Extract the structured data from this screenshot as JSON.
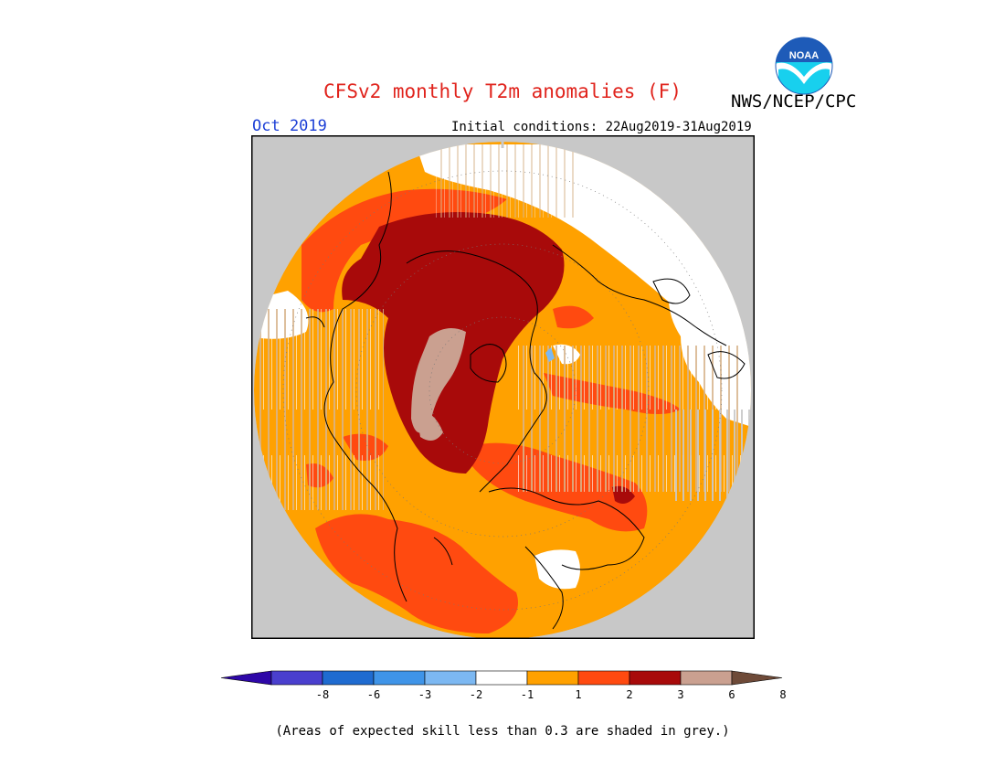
{
  "header": {
    "title": "CFSv2 monthly T2m anomalies (F)",
    "agency": "NWS/NCEP/CPC",
    "month": "Oct 2019",
    "initial_conditions": "Initial conditions: 22Aug2019-31Aug2019",
    "logo_text": "NOAA"
  },
  "colorbar": {
    "ticks": [
      "-8",
      "-6",
      "-3",
      "-2",
      "-1",
      "1",
      "2",
      "3",
      "6",
      "8"
    ],
    "colors": [
      "#2e07a8",
      "#4a3fce",
      "#1f6bd0",
      "#3f94e8",
      "#7cb8f2",
      "#ffffff",
      "#ffa100",
      "#ff4a10",
      "#a80a0a",
      "#caa090",
      "#6e4a38"
    ]
  },
  "map": {
    "projection": "north-polar-stereographic",
    "background": "#c8c8c8",
    "dominant_colors": [
      "#ffa100",
      "#ff4a10",
      "#a80a0a",
      "#caa090",
      "#ffffff"
    ]
  },
  "footnote": "(Areas of expected skill less than 0.3 are shaded in grey.)"
}
